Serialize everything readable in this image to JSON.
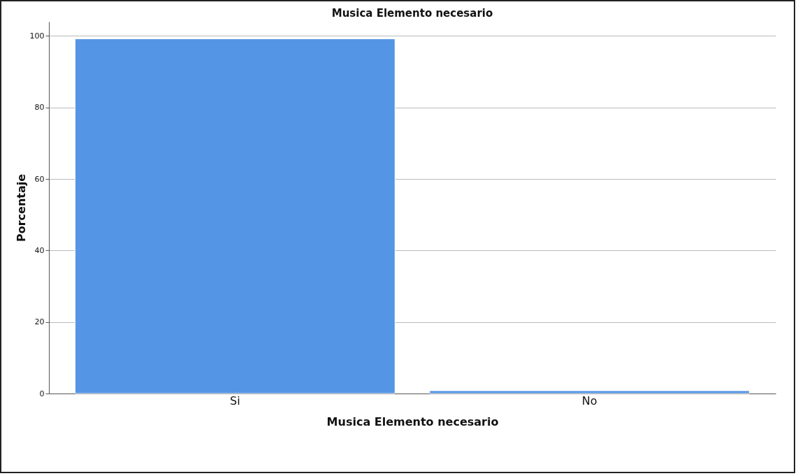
{
  "chart_data": {
    "type": "bar",
    "title": "Musica Elemento necesario",
    "xlabel": "Musica Elemento necesario",
    "ylabel": "Porcentaje",
    "categories": [
      "Si",
      "No"
    ],
    "values": [
      99.2,
      0.8
    ],
    "color": "#5595e5",
    "ylim": [
      0,
      104
    ],
    "yticks": [
      0,
      20,
      40,
      60,
      80,
      100
    ],
    "grid": "y"
  }
}
